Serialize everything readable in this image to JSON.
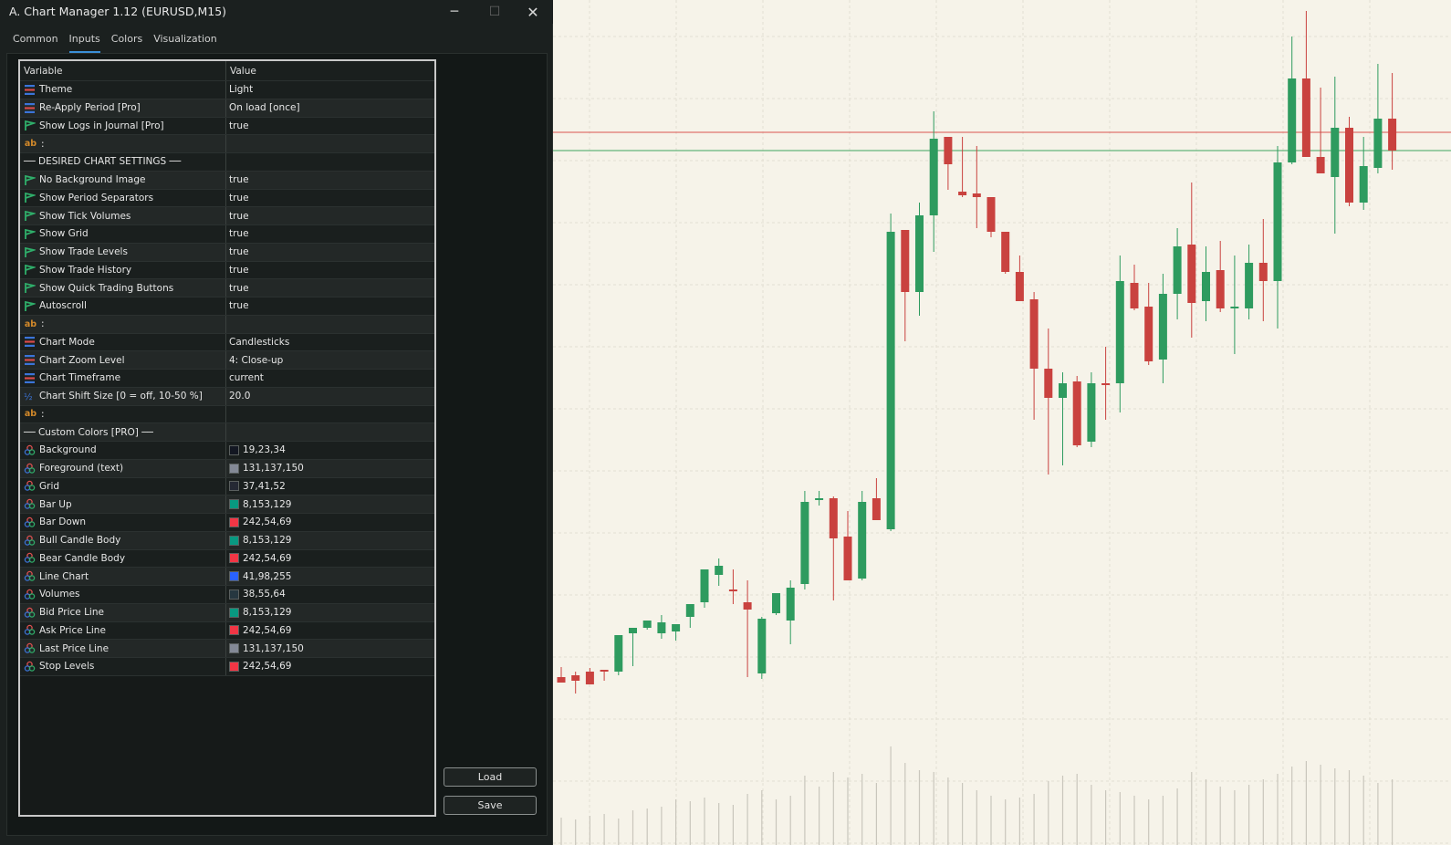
{
  "window": {
    "title": "A. Chart Manager 1.12 (EURUSD,M15)",
    "min_glyph": "─",
    "max_glyph": "☐",
    "close_glyph": "✕"
  },
  "tabs": [
    {
      "label": "Common",
      "active": false
    },
    {
      "label": "Inputs",
      "active": true
    },
    {
      "label": "Colors",
      "active": false
    },
    {
      "label": "Visualization",
      "active": false
    }
  ],
  "grid": {
    "header": {
      "variable": "Variable",
      "value": "Value"
    },
    "rows": [
      {
        "icon": "enum-icon",
        "variable": "Theme",
        "value": "Light"
      },
      {
        "icon": "enum-icon",
        "variable": "Re-Apply Period [Pro]",
        "value": "On load [once]"
      },
      {
        "icon": "bool-icon",
        "variable": "Show Logs in Journal [Pro]",
        "value": "true"
      },
      {
        "icon": "string-icon",
        "variable": ":",
        "value": ""
      },
      {
        "icon": "none",
        "variable": "── DESIRED CHART SETTINGS ──",
        "value": ""
      },
      {
        "icon": "bool-icon",
        "variable": "No Background Image",
        "value": "true"
      },
      {
        "icon": "bool-icon",
        "variable": "Show Period Separators",
        "value": "true"
      },
      {
        "icon": "bool-icon",
        "variable": "Show Tick Volumes",
        "value": "true"
      },
      {
        "icon": "bool-icon",
        "variable": "Show Grid",
        "value": "true"
      },
      {
        "icon": "bool-icon",
        "variable": "Show Trade Levels",
        "value": "true"
      },
      {
        "icon": "bool-icon",
        "variable": "Show Trade History",
        "value": "true"
      },
      {
        "icon": "bool-icon",
        "variable": "Show Quick Trading Buttons",
        "value": "true"
      },
      {
        "icon": "bool-icon",
        "variable": "Autoscroll",
        "value": "true"
      },
      {
        "icon": "string-icon",
        "variable": ":",
        "value": ""
      },
      {
        "icon": "enum-icon",
        "variable": "Chart Mode",
        "value": "Candlesticks"
      },
      {
        "icon": "enum-icon",
        "variable": "Chart Zoom Level",
        "value": "4: Close-up"
      },
      {
        "icon": "enum-icon",
        "variable": "Chart Timeframe",
        "value": "current"
      },
      {
        "icon": "double-icon",
        "variable": "Chart Shift Size [0 = off, 10-50 %]",
        "value": "20.0"
      },
      {
        "icon": "string-icon",
        "variable": ":",
        "value": ""
      },
      {
        "icon": "none",
        "variable": "── Custom Colors [PRO] ──",
        "value": ""
      },
      {
        "icon": "color-icon",
        "variable": "Background",
        "value": "19,23,34",
        "swatch": "#131722"
      },
      {
        "icon": "color-icon",
        "variable": "Foreground (text)",
        "value": "131,137,150",
        "swatch": "#838996"
      },
      {
        "icon": "color-icon",
        "variable": "Grid",
        "value": "37,41,52",
        "swatch": "#252934"
      },
      {
        "icon": "color-icon",
        "variable": "Bar Up",
        "value": "8,153,129",
        "swatch": "#089981"
      },
      {
        "icon": "color-icon",
        "variable": "Bar Down",
        "value": "242,54,69",
        "swatch": "#f23645"
      },
      {
        "icon": "color-icon",
        "variable": "Bull Candle Body",
        "value": "8,153,129",
        "swatch": "#089981"
      },
      {
        "icon": "color-icon",
        "variable": "Bear Candle Body",
        "value": "242,54,69",
        "swatch": "#f23645"
      },
      {
        "icon": "color-icon",
        "variable": "Line Chart",
        "value": "41,98,255",
        "swatch": "#2962ff"
      },
      {
        "icon": "color-icon",
        "variable": "Volumes",
        "value": "38,55,64",
        "swatch": "#263740"
      },
      {
        "icon": "color-icon",
        "variable": "Bid Price Line",
        "value": "8,153,129",
        "swatch": "#089981"
      },
      {
        "icon": "color-icon",
        "variable": "Ask Price Line",
        "value": "242,54,69",
        "swatch": "#f23645"
      },
      {
        "icon": "color-icon",
        "variable": "Last Price Line",
        "value": "131,137,150",
        "swatch": "#838996"
      },
      {
        "icon": "color-icon",
        "variable": "Stop Levels",
        "value": "242,54,69",
        "swatch": "#f23645"
      }
    ]
  },
  "buttons": {
    "load": "Load",
    "save": "Save"
  },
  "colors": {
    "bull": "#2e9b5f",
    "bear": "#c9423f",
    "ask_line": "#d9534f",
    "bid_line": "#3fa45f",
    "chart_bg": "#f6f3e9",
    "grid": "#e3dfd2",
    "volume": "#c9c6bc"
  },
  "chart_candles": [
    [
      742,
      748,
      748,
      731
    ],
    [
      740,
      760,
      746,
      736
    ],
    [
      736,
      744,
      750,
      732
    ],
    [
      734,
      746,
      736,
      744
    ],
    [
      736,
      740,
      696,
      742
    ],
    [
      694,
      730,
      688,
      732
    ],
    [
      688,
      690,
      680,
      700
    ],
    [
      694,
      700,
      682,
      674
    ],
    [
      692,
      702,
      684,
      692
    ],
    [
      676,
      688,
      662,
      686
    ],
    [
      660,
      666,
      624,
      674
    ],
    [
      630,
      642,
      620,
      612
    ],
    [
      646,
      662,
      648,
      624
    ],
    [
      660,
      742,
      668,
      636
    ],
    [
      738,
      744,
      678,
      676
    ],
    [
      672,
      674,
      650,
      668
    ],
    [
      680,
      706,
      644,
      636
    ],
    [
      640,
      646,
      550,
      538
    ],
    [
      548,
      554,
      546,
      538
    ],
    [
      546,
      658,
      590,
      544
    ],
    [
      588,
      636,
      636,
      560
    ],
    [
      634,
      636,
      550,
      538
    ],
    [
      546,
      570,
      570,
      524
    ],
    [
      580,
      582,
      254,
      234
    ],
    [
      252,
      374,
      320,
      258
    ],
    [
      320,
      346,
      236,
      222
    ],
    [
      236,
      276,
      152,
      122
    ],
    [
      150,
      208,
      180,
      150
    ],
    [
      210,
      216,
      214,
      150
    ],
    [
      212,
      250,
      216,
      160
    ],
    [
      216,
      260,
      254,
      230
    ],
    [
      254,
      300,
      298,
      260
    ],
    [
      298,
      330,
      330,
      280
    ],
    [
      328,
      460,
      404,
      320
    ],
    [
      404,
      520,
      436,
      360
    ],
    [
      436,
      510,
      420,
      408
    ],
    [
      418,
      490,
      488,
      412
    ],
    [
      484,
      490,
      420,
      408
    ],
    [
      420,
      460,
      420,
      380
    ],
    [
      420,
      452,
      308,
      280
    ],
    [
      310,
      340,
      338,
      290
    ],
    [
      336,
      400,
      396,
      310
    ],
    [
      394,
      420,
      322,
      300
    ],
    [
      322,
      350,
      270,
      250
    ],
    [
      268,
      370,
      332,
      200
    ],
    [
      330,
      352,
      298,
      270
    ],
    [
      296,
      342,
      338,
      264
    ],
    [
      338,
      388,
      336,
      280
    ],
    [
      338,
      350,
      288,
      268
    ],
    [
      288,
      352,
      308,
      240
    ],
    [
      308,
      360,
      178,
      160
    ],
    [
      178,
      180,
      86,
      40
    ],
    [
      86,
      172,
      172,
      12
    ],
    [
      172,
      190,
      190,
      96
    ],
    [
      194,
      256,
      140,
      84
    ],
    [
      140,
      226,
      222,
      128
    ],
    [
      222,
      230,
      182,
      150
    ],
    [
      184,
      190,
      130,
      70
    ],
    [
      130,
      186,
      165,
      80
    ]
  ],
  "chart_volumes": [
    10,
    8,
    12,
    14,
    9,
    18,
    20,
    22,
    30,
    28,
    32,
    26,
    24,
    36,
    40,
    30,
    34,
    56,
    44,
    60,
    54,
    58,
    48,
    88,
    70,
    62,
    60,
    54,
    48,
    40,
    34,
    30,
    32,
    36,
    50,
    56,
    58,
    46,
    40,
    38,
    34,
    30,
    34,
    42,
    60,
    52,
    44,
    40,
    46,
    52,
    58,
    66,
    72,
    68,
    64,
    62,
    56,
    48,
    52
  ]
}
